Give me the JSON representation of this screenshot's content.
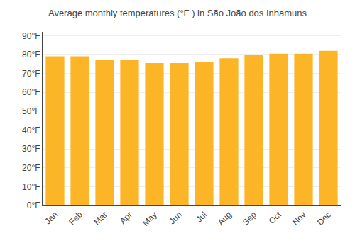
{
  "chart_data": {
    "type": "bar",
    "title": "Average monthly temperatures (°F ) in São João dos Inhamuns",
    "categories": [
      "Jan",
      "Feb",
      "Mar",
      "Apr",
      "May",
      "Jun",
      "Jul",
      "Aug",
      "Sep",
      "Oct",
      "Nov",
      "Dec"
    ],
    "values": [
      79,
      79,
      77,
      77,
      75.5,
      75.5,
      76,
      78,
      80,
      80.5,
      80.5,
      82
    ],
    "color": "#FDB528",
    "ylim": [
      0,
      92
    ],
    "yticks": [
      {
        "value": 0,
        "label": "0°F"
      },
      {
        "value": 10,
        "label": "10°F"
      },
      {
        "value": 20,
        "label": "20°F"
      },
      {
        "value": 30,
        "label": "30°F"
      },
      {
        "value": 40,
        "label": "40°F"
      },
      {
        "value": 50,
        "label": "50°F"
      },
      {
        "value": 60,
        "label": "60°F"
      },
      {
        "value": 70,
        "label": "70°F"
      },
      {
        "value": 80,
        "label": "80°F"
      },
      {
        "value": 90,
        "label": "90°F"
      }
    ],
    "grid": true
  }
}
